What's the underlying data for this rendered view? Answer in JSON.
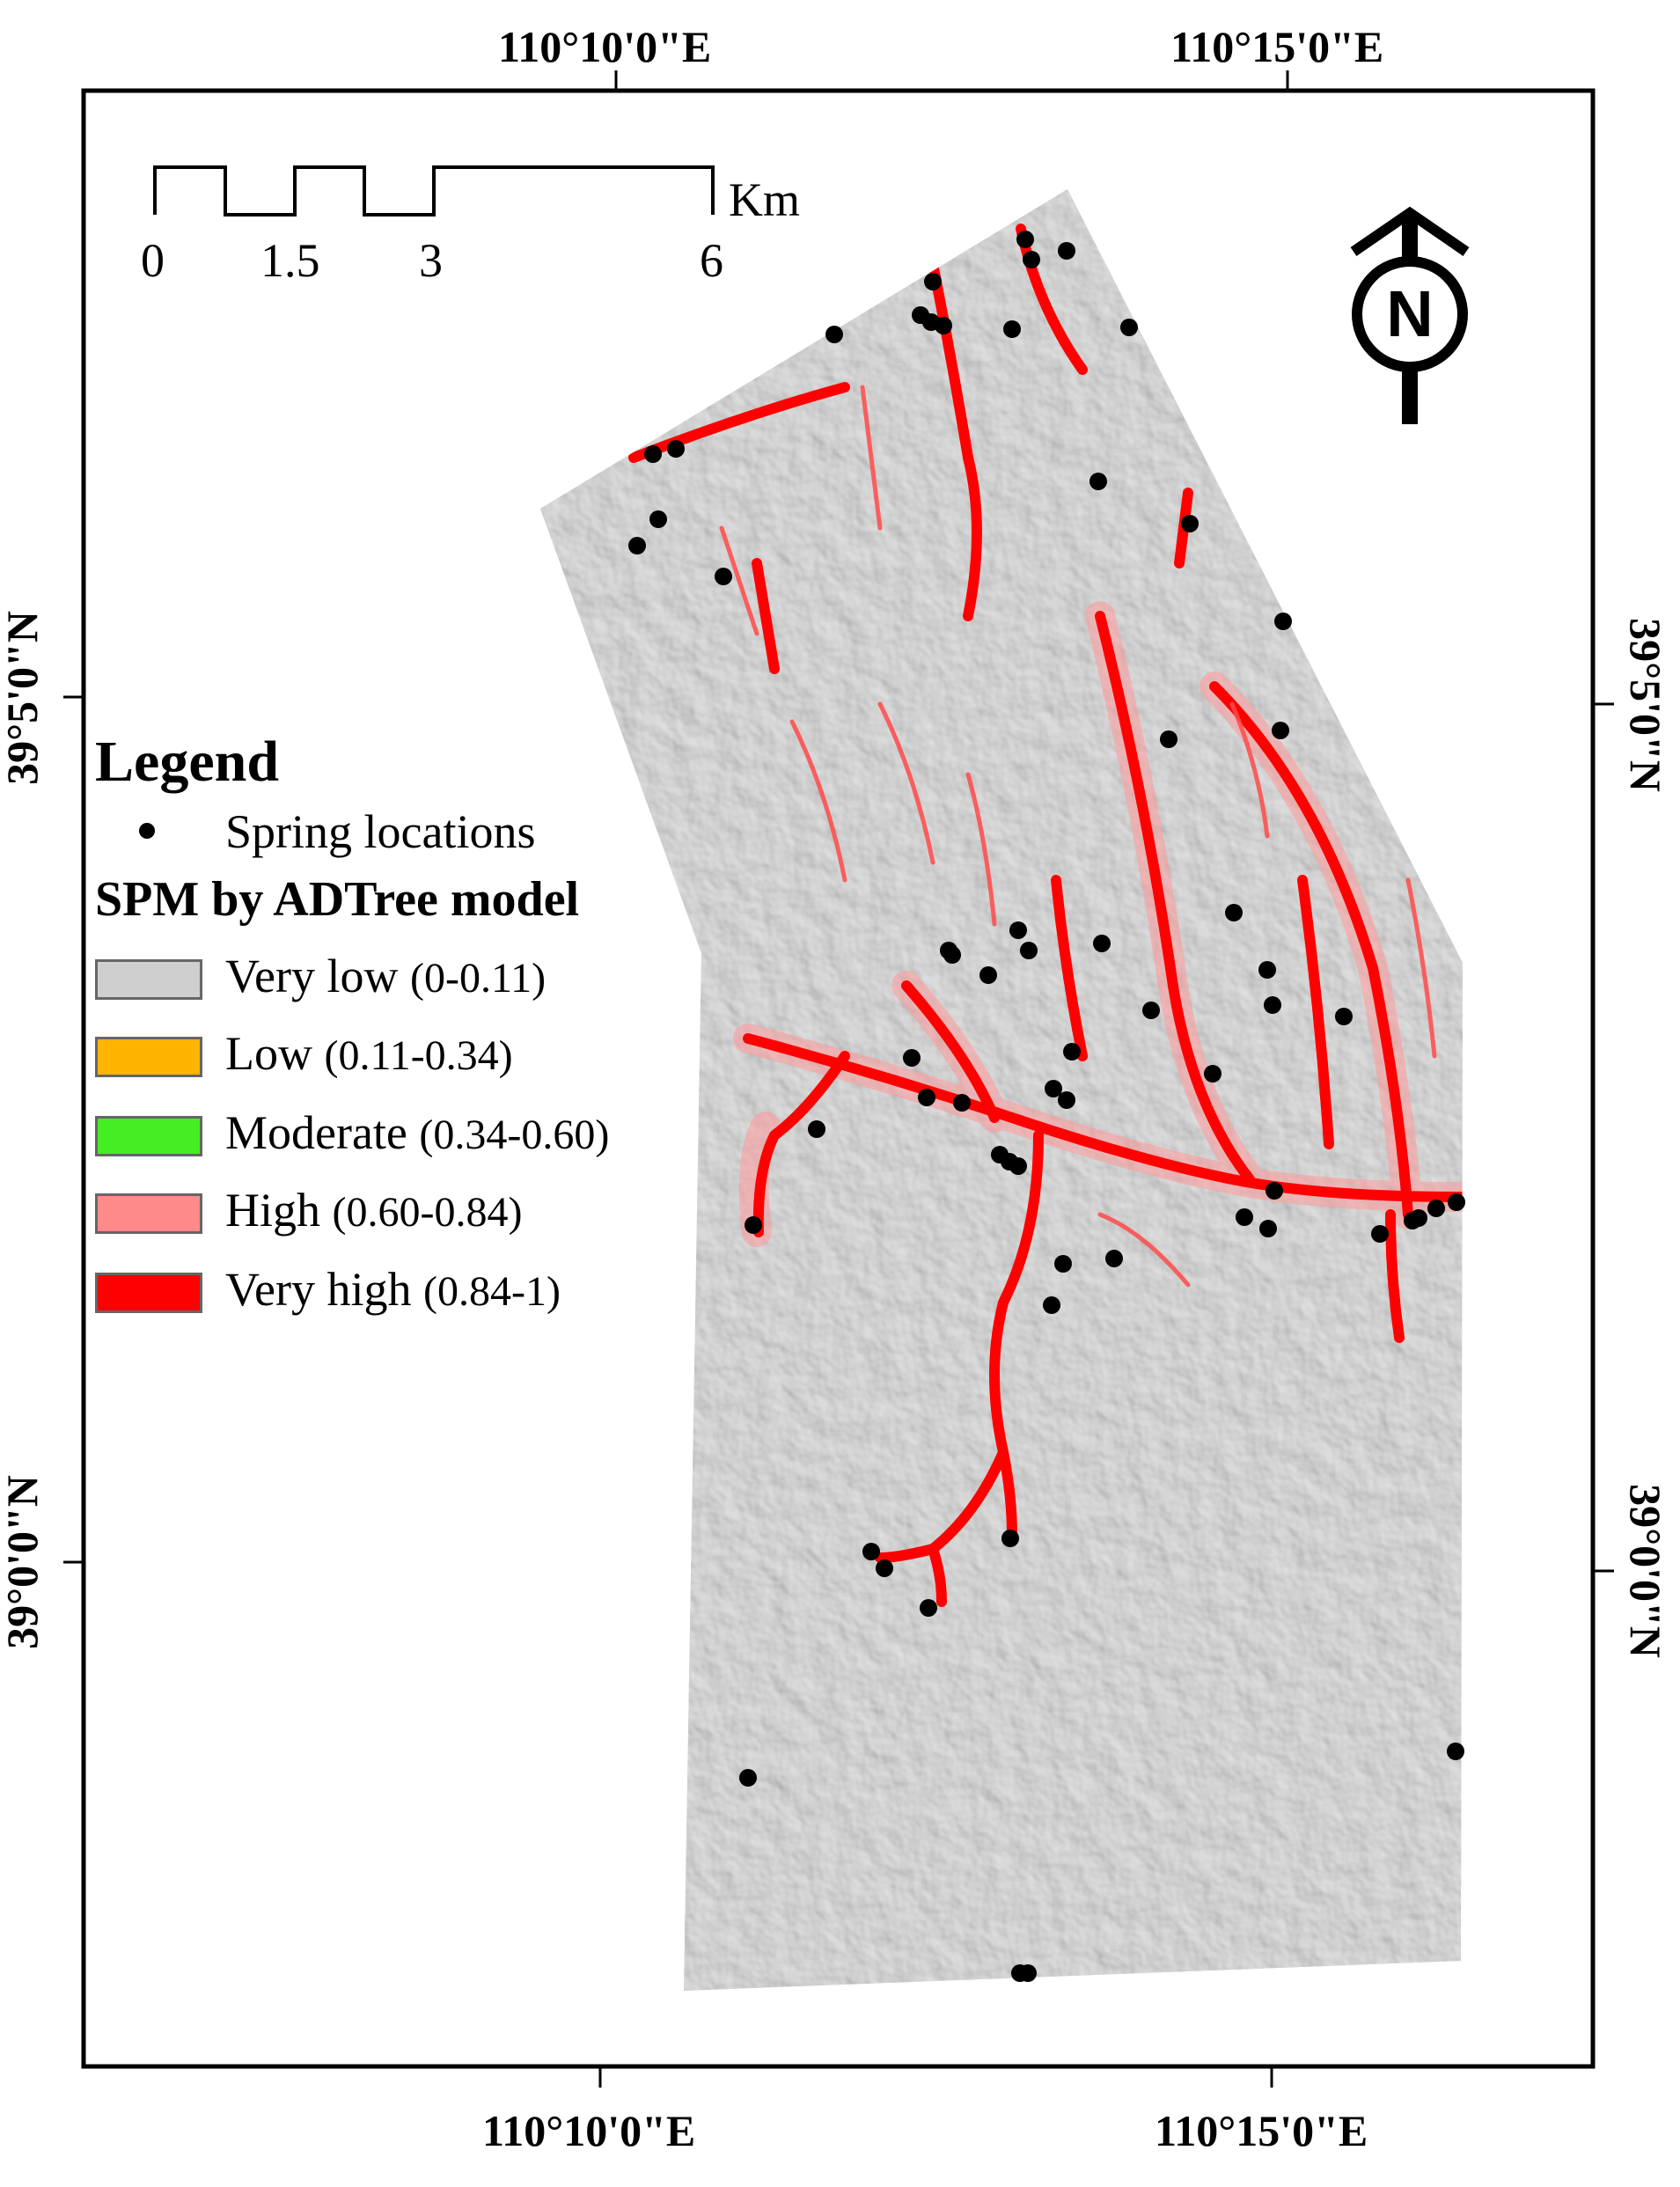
{
  "coordinates": {
    "top": [
      "110°10'0\"E",
      "110°15'0\"E"
    ],
    "bottom": [
      "110°10'0\"E",
      "110°15'0\"E"
    ],
    "left": [
      "39°5'0\"N",
      "39°0'0\"N"
    ],
    "right": [
      "39°5'0\"N",
      "39°0'0\"N"
    ]
  },
  "scale_bar": {
    "ticks": [
      "0",
      "1.5",
      "3",
      "6"
    ],
    "unit": "Km"
  },
  "north_arrow": {
    "letter": "N"
  },
  "legend": {
    "title": "Legend",
    "spring_label": "Spring locations",
    "model_title": "SPM by ADTree model",
    "classes": [
      {
        "name": "Very low",
        "range": "(0-0.11)",
        "color": "#cfcfcf"
      },
      {
        "name": "Low",
        "range": "(0.11-0.34)",
        "color": "#ffb400"
      },
      {
        "name": "Moderate",
        "range": "(0.34-0.60)",
        "color": "#44ee22"
      },
      {
        "name": "High",
        "range": "(0.60-0.84)",
        "color": "#ff8a8a"
      },
      {
        "name": "Very high",
        "range": "(0.84-1)",
        "color": "#ff0000"
      }
    ]
  },
  "colors": {
    "terrain": "#c8c8c8",
    "very_high": "#ff1a1a",
    "high": "#ff8080",
    "spring": "#000000"
  }
}
